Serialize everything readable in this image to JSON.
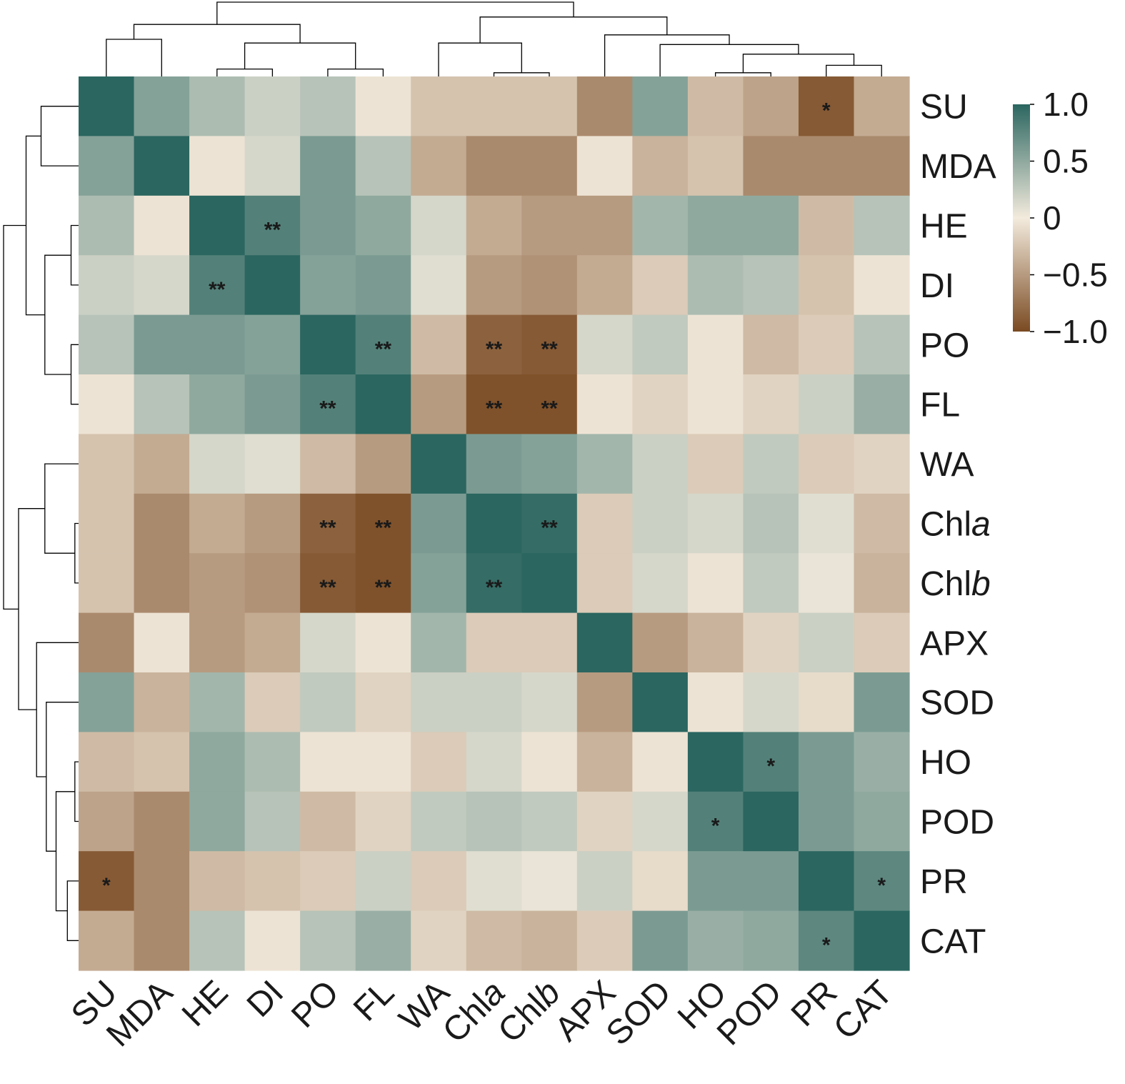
{
  "chart_data": {
    "type": "heatmap",
    "title": "",
    "variables": [
      {
        "name": "SU",
        "base": "SU",
        "italic": ""
      },
      {
        "name": "MDA",
        "base": "MDA",
        "italic": ""
      },
      {
        "name": "HE",
        "base": "HE",
        "italic": ""
      },
      {
        "name": "DI",
        "base": "DI",
        "italic": ""
      },
      {
        "name": "PO",
        "base": "PO",
        "italic": ""
      },
      {
        "name": "FL",
        "base": "FL",
        "italic": ""
      },
      {
        "name": "WA",
        "base": "WA",
        "italic": ""
      },
      {
        "name": "Chla",
        "base": "Chl",
        "italic": "a"
      },
      {
        "name": "Chlb",
        "base": "Chl",
        "italic": "b"
      },
      {
        "name": "APX",
        "base": "APX",
        "italic": ""
      },
      {
        "name": "SOD",
        "base": "SOD",
        "italic": ""
      },
      {
        "name": "HO",
        "base": "HO",
        "italic": ""
      },
      {
        "name": "POD",
        "base": "POD",
        "italic": ""
      },
      {
        "name": "PR",
        "base": "PR",
        "italic": ""
      },
      {
        "name": "CAT",
        "base": "CAT",
        "italic": ""
      }
    ],
    "values": [
      [
        1.0,
        0.55,
        0.35,
        0.2,
        0.3,
        -0.05,
        -0.25,
        -0.25,
        -0.25,
        -0.6,
        0.55,
        -0.3,
        -0.45,
        -0.9,
        -0.4
      ],
      [
        0.55,
        1.0,
        -0.05,
        0.15,
        0.6,
        0.3,
        -0.4,
        -0.6,
        -0.6,
        -0.05,
        -0.35,
        -0.25,
        -0.6,
        -0.6,
        -0.6
      ],
      [
        0.35,
        -0.05,
        1.0,
        0.8,
        0.6,
        0.5,
        0.15,
        -0.4,
        -0.5,
        -0.5,
        0.4,
        0.5,
        0.5,
        -0.3,
        0.3
      ],
      [
        0.2,
        0.15,
        0.8,
        1.0,
        0.55,
        0.6,
        0.1,
        -0.5,
        -0.55,
        -0.4,
        -0.2,
        0.35,
        0.3,
        -0.25,
        -0.05
      ],
      [
        0.3,
        0.6,
        0.6,
        0.55,
        1.0,
        0.8,
        -0.3,
        -0.85,
        -0.9,
        0.15,
        0.25,
        -0.05,
        -0.3,
        -0.2,
        0.3
      ],
      [
        -0.05,
        0.3,
        0.5,
        0.6,
        0.8,
        1.0,
        -0.5,
        -0.95,
        -0.95,
        -0.05,
        -0.15,
        -0.05,
        -0.15,
        0.2,
        0.45
      ],
      [
        -0.25,
        -0.4,
        0.15,
        0.1,
        -0.3,
        -0.5,
        1.0,
        0.6,
        0.55,
        0.4,
        0.2,
        -0.2,
        0.25,
        -0.2,
        -0.15
      ],
      [
        -0.25,
        -0.6,
        -0.4,
        -0.5,
        -0.85,
        -0.95,
        0.6,
        1.0,
        0.95,
        -0.2,
        0.2,
        0.15,
        0.3,
        0.1,
        -0.3
      ],
      [
        -0.25,
        -0.6,
        -0.5,
        -0.55,
        -0.9,
        -0.95,
        0.55,
        0.95,
        1.0,
        -0.2,
        0.15,
        -0.05,
        0.25,
        0.05,
        -0.35
      ],
      [
        -0.6,
        -0.05,
        -0.5,
        -0.4,
        0.15,
        -0.05,
        0.4,
        -0.2,
        -0.2,
        1.0,
        -0.5,
        -0.35,
        -0.15,
        0.2,
        -0.2
      ],
      [
        0.55,
        -0.35,
        0.4,
        -0.2,
        0.25,
        -0.15,
        0.2,
        0.2,
        0.15,
        -0.5,
        1.0,
        -0.05,
        0.15,
        -0.1,
        0.6
      ],
      [
        -0.3,
        -0.25,
        0.5,
        0.35,
        -0.05,
        -0.05,
        -0.2,
        0.15,
        -0.05,
        -0.35,
        -0.05,
        1.0,
        0.8,
        0.6,
        0.45
      ],
      [
        -0.45,
        -0.6,
        0.5,
        0.3,
        -0.3,
        -0.15,
        0.25,
        0.3,
        0.25,
        -0.15,
        0.15,
        0.8,
        1.0,
        0.6,
        0.5
      ],
      [
        -0.9,
        -0.6,
        -0.3,
        -0.25,
        -0.2,
        0.2,
        -0.2,
        0.1,
        0.05,
        0.2,
        -0.1,
        0.6,
        0.6,
        1.0,
        0.75
      ],
      [
        -0.4,
        -0.6,
        0.3,
        -0.05,
        0.3,
        0.45,
        -0.15,
        -0.3,
        -0.35,
        -0.2,
        0.6,
        0.45,
        0.5,
        0.75,
        1.0
      ]
    ],
    "significance": [
      {
        "row": "SU",
        "col": "PR",
        "mark": "*"
      },
      {
        "row": "HE",
        "col": "DI",
        "mark": "**"
      },
      {
        "row": "DI",
        "col": "HE",
        "mark": "**"
      },
      {
        "row": "PO",
        "col": "FL",
        "mark": "**"
      },
      {
        "row": "PO",
        "col": "Chla",
        "mark": "**"
      },
      {
        "row": "PO",
        "col": "Chlb",
        "mark": "**"
      },
      {
        "row": "FL",
        "col": "PO",
        "mark": "**"
      },
      {
        "row": "FL",
        "col": "Chla",
        "mark": "**"
      },
      {
        "row": "FL",
        "col": "Chlb",
        "mark": "**"
      },
      {
        "row": "Chla",
        "col": "PO",
        "mark": "**"
      },
      {
        "row": "Chla",
        "col": "FL",
        "mark": "**"
      },
      {
        "row": "Chla",
        "col": "Chlb",
        "mark": "**"
      },
      {
        "row": "Chlb",
        "col": "PO",
        "mark": "**"
      },
      {
        "row": "Chlb",
        "col": "FL",
        "mark": "**"
      },
      {
        "row": "Chlb",
        "col": "Chla",
        "mark": "**"
      },
      {
        "row": "HO",
        "col": "POD",
        "mark": "*"
      },
      {
        "row": "POD",
        "col": "HO",
        "mark": "*"
      },
      {
        "row": "PR",
        "col": "SU",
        "mark": "*"
      },
      {
        "row": "PR",
        "col": "CAT",
        "mark": "*"
      },
      {
        "row": "CAT",
        "col": "PR",
        "mark": "*"
      }
    ],
    "colorbar": {
      "ticks": [
        {
          "value": 1.0,
          "label": "1.0"
        },
        {
          "value": 0.5,
          "label": "0.5"
        },
        {
          "value": 0,
          "label": "0"
        },
        {
          "value": -0.5,
          "label": "−0.5"
        },
        {
          "value": -1.0,
          "label": "−1.0"
        }
      ],
      "range": [
        -1.0,
        1.0
      ],
      "colors": {
        "low": "#7a4a22",
        "mid": "#f3ebdd",
        "high": "#2b6660"
      }
    },
    "dendrogram": {
      "merges": [
        {
          "a": "HO",
          "b": "POD",
          "height": 0.05
        },
        {
          "a": "Chla",
          "b": "Chlb",
          "height": 0.05
        },
        {
          "a": "PO",
          "b": "FL",
          "height": 0.1
        },
        {
          "a": "HE",
          "b": "DI",
          "height": 0.1
        },
        {
          "a": "PR",
          "b": "CAT",
          "height": 0.15
        },
        {
          "a": "HO|POD",
          "b": "PR|CAT",
          "height": 0.3
        },
        {
          "a": "SOD",
          "b": "HO|POD|PR|CAT",
          "height": 0.43
        },
        {
          "a": "HE|DI",
          "b": "PO|FL",
          "height": 0.45
        },
        {
          "a": "WA",
          "b": "Chla|Chlb",
          "height": 0.45
        },
        {
          "a": "SU",
          "b": "MDA",
          "height": 0.5
        },
        {
          "a": "APX",
          "b": "SOD|HO|POD|PR|CAT",
          "height": 0.56
        },
        {
          "a": "SU|MDA",
          "b": "HE|DI|PO|FL",
          "height": 0.7
        },
        {
          "a": "WA|Chla|Chlb",
          "b": "APX|SOD|HO|POD|PR|CAT",
          "height": 0.8
        },
        {
          "a": "SU|MDA|HE|DI|PO|FL",
          "b": "WA|Chla|Chlb|APX|SOD|HO|POD|PR|CAT",
          "height": 1.0
        }
      ]
    },
    "xlabel": "",
    "ylabel": ""
  }
}
